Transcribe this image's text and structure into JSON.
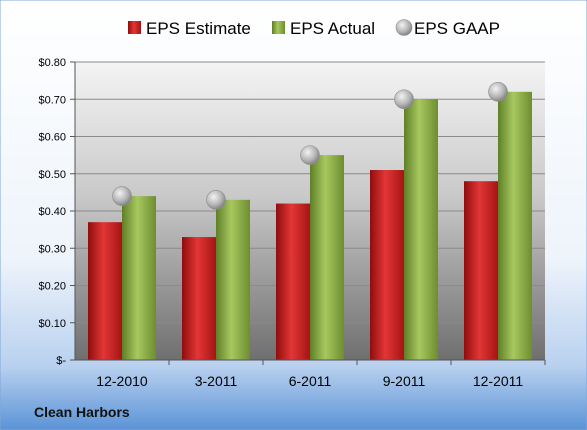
{
  "company": "Clean Harbors",
  "colors": {
    "estimate": "#cc1f1f",
    "actual": "#8db04a",
    "gaap": "#a9a9a9",
    "gradient_top": "#ffffff",
    "gradient_bottom": "#5b93d6"
  },
  "chart_data": {
    "type": "bar",
    "categories": [
      "12-2010",
      "3-2011",
      "6-2011",
      "9-2011",
      "12-2011"
    ],
    "series": [
      {
        "name": "EPS Estimate",
        "type": "bar",
        "values": [
          0.37,
          0.33,
          0.42,
          0.51,
          0.48
        ]
      },
      {
        "name": "EPS Actual",
        "type": "bar",
        "values": [
          0.44,
          0.43,
          0.55,
          0.7,
          0.72
        ]
      },
      {
        "name": "EPS GAAP",
        "type": "scatter",
        "values": [
          0.44,
          0.43,
          0.55,
          0.7,
          0.72
        ]
      }
    ],
    "ylim": [
      0,
      0.8
    ],
    "yticks": [
      0,
      0.1,
      0.2,
      0.3,
      0.4,
      0.5,
      0.6,
      0.7,
      0.8
    ],
    "ytick_labels": [
      "$-",
      "$0.10",
      "$0.20",
      "$0.30",
      "$0.40",
      "$0.50",
      "$0.60",
      "$0.70",
      "$0.80"
    ],
    "grid": true,
    "legend_position": "top"
  }
}
